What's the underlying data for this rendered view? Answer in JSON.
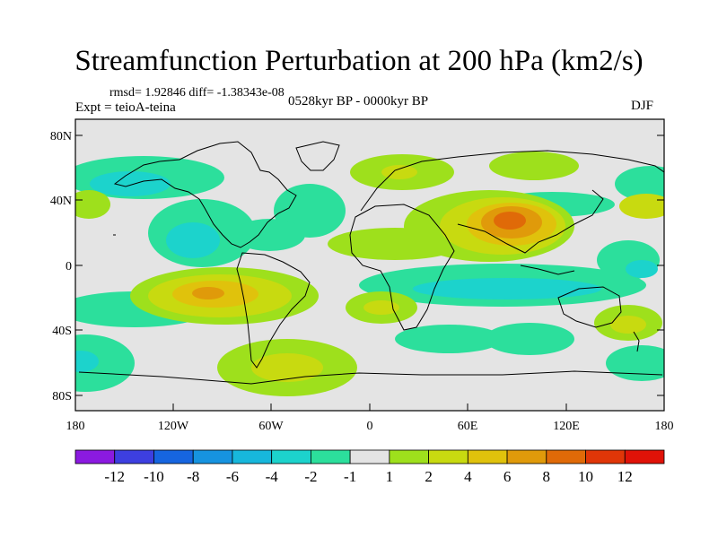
{
  "title": "Streamfunction Perturbation at 200 hPa (km2/s)",
  "subtitle_stats": "rmsd= 1.92846 diff= -1.38343e-08",
  "experiment": "Expt = teioA-teina",
  "period": "0528kyr BP - 0000kyr BP",
  "season": "DJF",
  "axes": {
    "y_labels": [
      "80N",
      "40N",
      "0",
      "40S",
      "80S"
    ],
    "x_labels": [
      "180",
      "120W",
      "60W",
      "0",
      "60E",
      "120E",
      "180"
    ]
  },
  "colorbar": {
    "labels": [
      "-12",
      "-10",
      "-8",
      "-6",
      "-4",
      "-2",
      "-1",
      "1",
      "2",
      "4",
      "6",
      "8",
      "10",
      "12"
    ],
    "colors": [
      "#8b1ae0",
      "#3d3fe0",
      "#1665e0",
      "#1693e0",
      "#17b7dc",
      "#1cd3cc",
      "#2cdf9c",
      "#e4e4e4",
      "#9ee01c",
      "#c8da10",
      "#e0c20c",
      "#e09a0a",
      "#e06a08",
      "#e03608",
      "#e01208"
    ]
  },
  "colors": {
    "background": "#e4e4e4",
    "coast": "#000000"
  }
}
